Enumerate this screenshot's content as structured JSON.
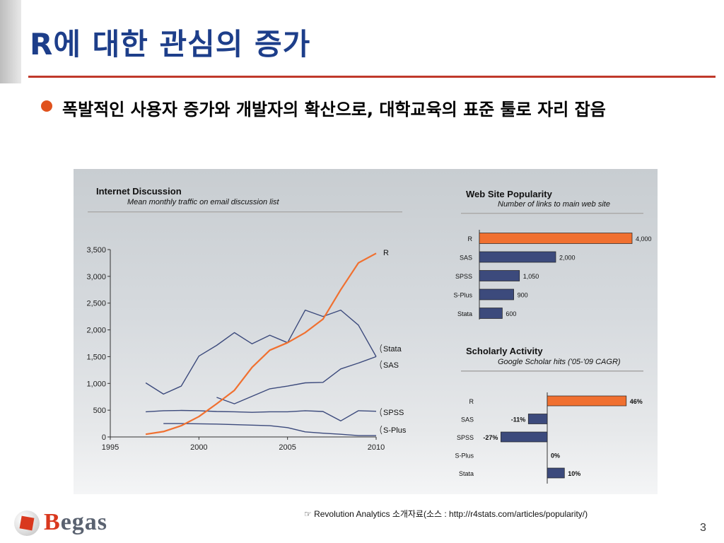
{
  "slide": {
    "title": "R에 대한 관심의 증가",
    "bullet": "폭발적인 사용자 증가와 개발자의 확산으로, 대학교육의 표준 툴로 자리 잡음",
    "source": "☞ Revolution Analytics  소개자료(소스 : http://r4stats.com/articles/popularity/)",
    "page_number": "3",
    "logo": "Begas",
    "colors": {
      "title": "#1d3e8a",
      "rule": "#c0392b",
      "bullet": "#e0521d",
      "r_series": "#f07030",
      "other_series": "#3c4a7c"
    }
  },
  "chart_data": [
    {
      "type": "line",
      "title": "Internet Discussion",
      "subtitle": "Mean monthly traffic on email discussion list",
      "x": [
        1997,
        1998,
        1999,
        2000,
        2001,
        2002,
        2003,
        2004,
        2005,
        2006,
        2007,
        2008,
        2009,
        2010
      ],
      "xticks": [
        "1995",
        "2000",
        "2005",
        "2010"
      ],
      "xlim": [
        1995,
        2010
      ],
      "ylim": [
        0,
        3500
      ],
      "yticks": [
        "0",
        "500",
        "1,000",
        "1,500",
        "2,000",
        "2,500",
        "3,000",
        "3,500"
      ],
      "grid": false,
      "series": [
        {
          "name": "R",
          "color": "#f07030",
          "points": [
            [
              1997,
              50
            ],
            [
              1998,
              100
            ],
            [
              1999,
              210
            ],
            [
              2000,
              380
            ],
            [
              2001,
              620
            ],
            [
              2002,
              870
            ],
            [
              2003,
              1300
            ],
            [
              2004,
              1620
            ],
            [
              2005,
              1760
            ],
            [
              2006,
              1950
            ],
            [
              2007,
              2200
            ],
            [
              2008,
              2750
            ],
            [
              2009,
              3250
            ],
            [
              2010,
              3430
            ]
          ]
        },
        {
          "name": "Stata",
          "color": "#3c4a7c",
          "points": [
            [
              1997,
              1010
            ],
            [
              1998,
              800
            ],
            [
              1999,
              950
            ],
            [
              2000,
              1510
            ],
            [
              2001,
              1710
            ],
            [
              2002,
              1950
            ],
            [
              2003,
              1740
            ],
            [
              2004,
              1900
            ],
            [
              2005,
              1760
            ],
            [
              2006,
              2370
            ],
            [
              2007,
              2250
            ],
            [
              2008,
              2370
            ],
            [
              2009,
              2090
            ],
            [
              2010,
              1500
            ]
          ]
        },
        {
          "name": "SAS",
          "color": "#3c4a7c",
          "points": [
            [
              2001,
              740
            ],
            [
              2002,
              620
            ],
            [
              2003,
              760
            ],
            [
              2004,
              900
            ],
            [
              2005,
              950
            ],
            [
              2006,
              1010
            ],
            [
              2007,
              1020
            ],
            [
              2008,
              1270
            ],
            [
              2009,
              1380
            ],
            [
              2010,
              1500
            ]
          ]
        },
        {
          "name": "SPSS",
          "color": "#3c4a7c",
          "points": [
            [
              1997,
              470
            ],
            [
              1998,
              490
            ],
            [
              1999,
              495
            ],
            [
              2000,
              490
            ],
            [
              2001,
              475
            ],
            [
              2002,
              470
            ],
            [
              2003,
              460
            ],
            [
              2004,
              470
            ],
            [
              2005,
              470
            ],
            [
              2006,
              490
            ],
            [
              2007,
              475
            ],
            [
              2008,
              300
            ],
            [
              2009,
              490
            ],
            [
              2010,
              480
            ]
          ]
        },
        {
          "name": "S-Plus",
          "color": "#3c4a7c",
          "points": [
            [
              1998,
              250
            ],
            [
              1999,
              250
            ],
            [
              2000,
              245
            ],
            [
              2001,
              240
            ],
            [
              2002,
              230
            ],
            [
              2003,
              220
            ],
            [
              2004,
              210
            ],
            [
              2005,
              175
            ],
            [
              2006,
              95
            ],
            [
              2007,
              70
            ],
            [
              2008,
              50
            ],
            [
              2009,
              25
            ],
            [
              2010,
              25
            ]
          ]
        }
      ],
      "labels": [
        "R",
        "Stata",
        "SAS",
        "SPSS",
        "S-Plus"
      ]
    },
    {
      "type": "bar",
      "orientation": "horizontal",
      "title": "Web Site Popularity",
      "subtitle": "Number of links to main web site",
      "categories": [
        "R",
        "SAS",
        "SPSS",
        "S-Plus",
        "Stata"
      ],
      "values": [
        4000,
        2000,
        1050,
        900,
        600
      ],
      "value_labels": [
        "4,000",
        "2,000",
        "1,050",
        "900",
        "600"
      ],
      "colors": [
        "#f07030",
        "#3c4a7c",
        "#3c4a7c",
        "#3c4a7c",
        "#3c4a7c"
      ],
      "xlim": [
        0,
        4000
      ]
    },
    {
      "type": "bar",
      "orientation": "horizontal",
      "title": "Scholarly Activity",
      "subtitle": "Google Scholar hits ('05-'09 CAGR)",
      "categories": [
        "R",
        "SAS",
        "SPSS",
        "S-Plus",
        "Stata"
      ],
      "values": [
        46,
        -11,
        -27,
        0,
        10
      ],
      "value_labels": [
        "46%",
        "-11%",
        "-27%",
        "0%",
        "10%"
      ],
      "colors": [
        "#f07030",
        "#3c4a7c",
        "#3c4a7c",
        "#3c4a7c",
        "#3c4a7c"
      ],
      "xlim": [
        -30,
        50
      ]
    }
  ]
}
